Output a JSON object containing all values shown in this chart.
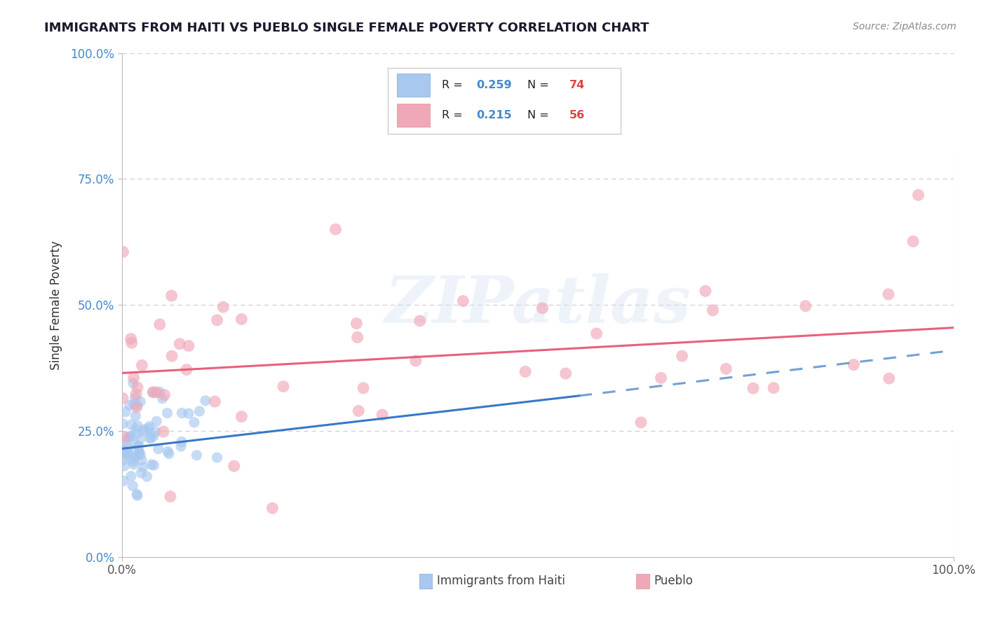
{
  "title": "IMMIGRANTS FROM HAITI VS PUEBLO SINGLE FEMALE POVERTY CORRELATION CHART",
  "source": "Source: ZipAtlas.com",
  "legend_label1": "Immigrants from Haiti",
  "legend_label2": "Pueblo",
  "ylabel": "Single Female Poverty",
  "R1": 0.259,
  "N1": 74,
  "R2": 0.215,
  "N2": 56,
  "series1_color": "#a8c8f0",
  "series2_color": "#f0a8b8",
  "line1_color": "#3878c8",
  "line2_color": "#e8607a",
  "line1_dash_color": "#88aad8",
  "background_color": "#ffffff",
  "grid_color": "#d0d0d8",
  "watermark": "ZIPatlas",
  "title_color": "#1a1a2e",
  "source_color": "#888888",
  "ytick_color": "#4488cc",
  "xtick_color": "#555555",
  "ylabel_color": "#333333",
  "legend_text_color": "#222222",
  "legend_R_color": "#4488cc",
  "legend_N_color": "#dd4444",
  "xlim": [
    0.0,
    1.0
  ],
  "ylim": [
    0.0,
    1.0
  ],
  "ytick_positions": [
    0.0,
    0.25,
    0.5,
    0.75,
    1.0
  ],
  "ytick_labels": [
    "0.0%",
    "25.0%",
    "50.0%",
    "75.0%",
    "100.0%"
  ],
  "xtick_positions": [
    0.0,
    1.0
  ],
  "xtick_labels": [
    "0.0%",
    "100.0%"
  ],
  "line1_x_start": 0.0,
  "line1_x_end": 0.55,
  "line1_y_start": 0.215,
  "line1_y_end": 0.32,
  "line1_dash_x_start": 0.55,
  "line1_dash_x_end": 1.0,
  "line1_dash_y_start": 0.32,
  "line1_dash_y_end": 0.41,
  "line2_x_start": 0.0,
  "line2_x_end": 1.0,
  "line2_y_start": 0.365,
  "line2_y_end": 0.455
}
